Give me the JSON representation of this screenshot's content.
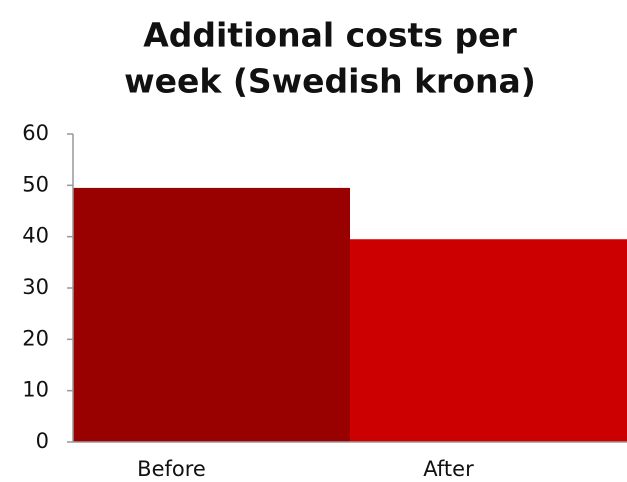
{
  "chart_data": {
    "type": "bar",
    "title": [
      "Additional costs per",
      "week (Swedish krona)"
    ],
    "categories": [
      "Before",
      "After"
    ],
    "values": [
      49.5,
      39.5
    ],
    "colors": [
      "#990000",
      "#cc0000"
    ],
    "ylim": [
      0,
      60
    ],
    "yticks": [
      0,
      10,
      20,
      30,
      40,
      50,
      60
    ],
    "grid": false
  }
}
